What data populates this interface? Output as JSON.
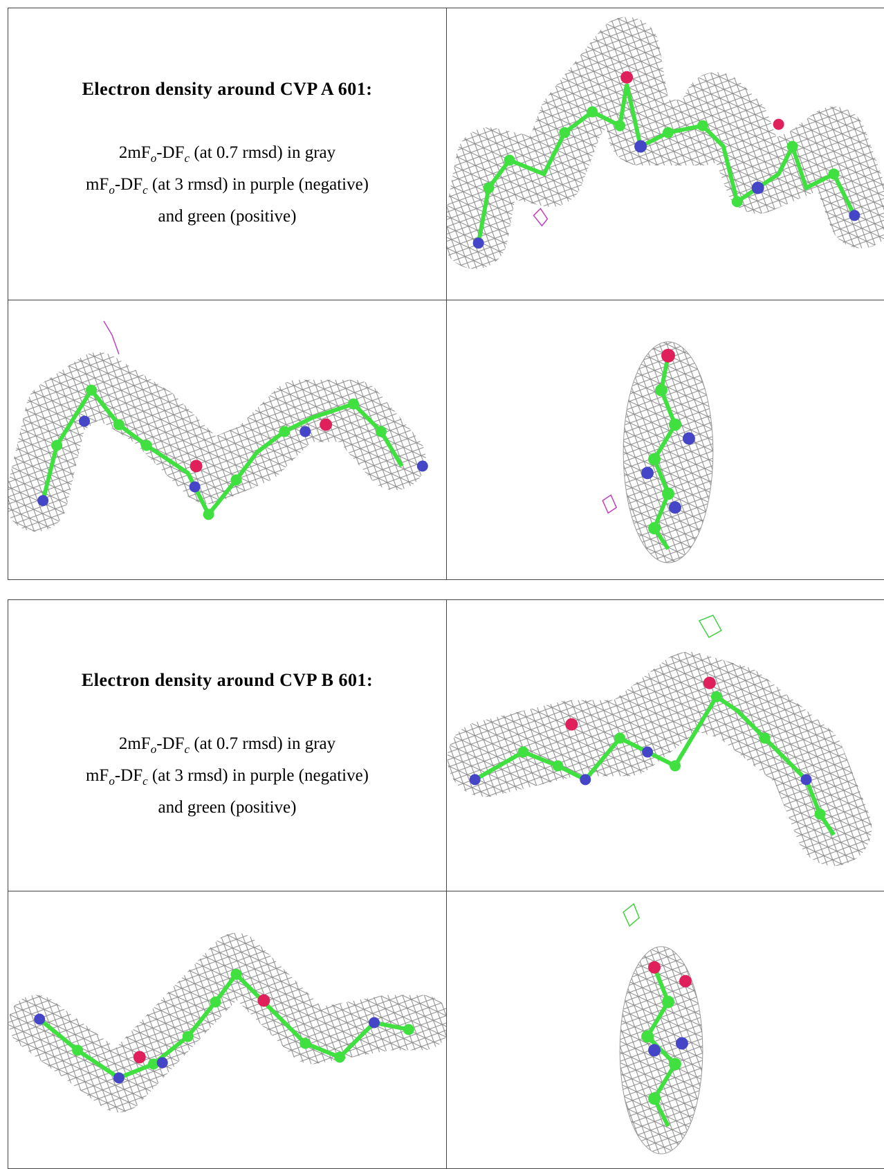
{
  "tables": [
    {
      "title": "Electron density around CVP A 601:",
      "lines": [
        [
          "2mF",
          "o",
          "-DF",
          "c",
          " (at 0.7 rmsd) in gray"
        ],
        [
          "mF",
          "o",
          "-DF",
          "c",
          " (at 3 rmsd) in purple (negative)"
        ],
        [
          "and green (positive)"
        ]
      ]
    },
    {
      "title": "Electron density around CVP B 601:",
      "lines": [
        [
          "2mF",
          "o",
          "-DF",
          "c",
          " (at 0.7 rmsd) in gray"
        ],
        [
          "mF",
          "o",
          "-DF",
          "c",
          " (at 3 rmsd) in purple (negative)"
        ],
        [
          "and green (positive)"
        ]
      ]
    }
  ]
}
